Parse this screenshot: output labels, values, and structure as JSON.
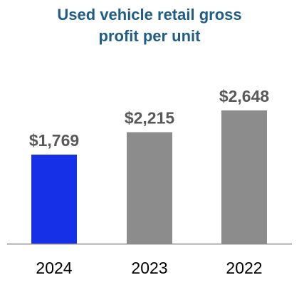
{
  "chart_data": {
    "type": "bar",
    "title_lines": [
      "Used vehicle retail gross",
      "profit per unit"
    ],
    "categories": [
      "2024",
      "2023",
      "2022"
    ],
    "values": [
      1769,
      2215,
      2648
    ],
    "value_labels": [
      "$1,769",
      "$2,215",
      "$2,648"
    ],
    "colors": [
      "#1530e6",
      "#8c8c8c",
      "#8c8c8c"
    ],
    "axis_color": "#8c8c8c",
    "xlabel": "",
    "ylabel": "",
    "ylim": [
      0,
      3100
    ],
    "grid": false,
    "legend": "none"
  }
}
